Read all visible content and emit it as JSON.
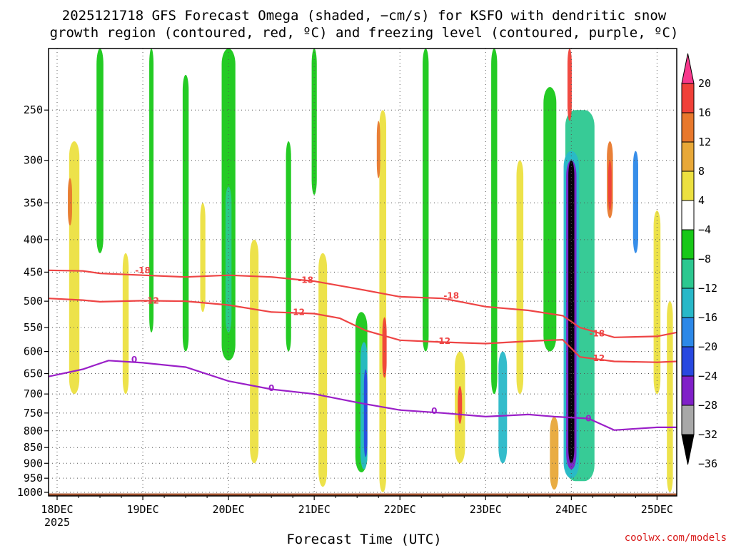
{
  "chart_data": {
    "type": "heatmap",
    "title_line1": "2025121718 GFS Forecast Omega (shaded, −cm/s) for KSFO with dendritic snow",
    "title_line2": "growth region (contoured, red, ºC) and freezing level (contoured, purple, ºC)",
    "xlabel": "Forecast Time (UTC)",
    "ylabel": "",
    "credit": "coolwx.com/models",
    "x_range_days": [
      17.9,
      25.23
    ],
    "y_range_hpa": [
      200,
      1013
    ],
    "y_ticks": [
      "250",
      "300",
      "350",
      "400",
      "450",
      "500",
      "550",
      "600",
      "650",
      "700",
      "750",
      "800",
      "850",
      "900",
      "950",
      "1000"
    ],
    "x_ticks": [
      {
        "label": "18DEC",
        "day": 18,
        "sublabel": "2025"
      },
      {
        "label": "19DEC",
        "day": 19
      },
      {
        "label": "20DEC",
        "day": 20
      },
      {
        "label": "21DEC",
        "day": 21
      },
      {
        "label": "22DEC",
        "day": 22
      },
      {
        "label": "23DEC",
        "day": 23
      },
      {
        "label": "24DEC",
        "day": 24
      },
      {
        "label": "25DEC",
        "day": 25
      }
    ],
    "colorbar": {
      "labels": [
        "20",
        "16",
        "12",
        "8",
        "4",
        "−4",
        "−8",
        "−12",
        "−16",
        "−20",
        "−24",
        "−28",
        "−32",
        "−36"
      ],
      "colors": [
        "#f7388c",
        "#f04038",
        "#e8782c",
        "#e8a838",
        "#ece040",
        "#ffffff",
        "#18c818",
        "#2cc890",
        "#28b8c8",
        "#2c88e8",
        "#2848e0",
        "#8020c8",
        "#a8a8a8",
        "#000000"
      ]
    },
    "series": [
      {
        "name": "-18",
        "color": "#ee4444",
        "points": [
          [
            17.9,
            447
          ],
          [
            18.3,
            448
          ],
          [
            18.5,
            452
          ],
          [
            19.0,
            455
          ],
          [
            19.5,
            458
          ],
          [
            20.0,
            455
          ],
          [
            20.5,
            458
          ],
          [
            21.0,
            465
          ],
          [
            21.5,
            478
          ],
          [
            22.0,
            492
          ],
          [
            22.5,
            495
          ],
          [
            23.0,
            510
          ],
          [
            23.5,
            517
          ],
          [
            23.9,
            527
          ],
          [
            24.1,
            550
          ],
          [
            24.5,
            570
          ],
          [
            25.0,
            568
          ],
          [
            25.23,
            560
          ]
        ]
      },
      {
        "name": "-12",
        "color": "#ee4444",
        "points": [
          [
            17.9,
            495
          ],
          [
            18.3,
            498
          ],
          [
            18.5,
            501
          ],
          [
            19.0,
            499
          ],
          [
            19.5,
            500
          ],
          [
            20.0,
            507
          ],
          [
            20.5,
            520
          ],
          [
            21.0,
            523
          ],
          [
            21.3,
            532
          ],
          [
            21.6,
            556
          ],
          [
            22.0,
            576
          ],
          [
            22.5,
            580
          ],
          [
            23.0,
            583
          ],
          [
            23.5,
            578
          ],
          [
            23.9,
            575
          ],
          [
            24.1,
            612
          ],
          [
            24.5,
            622
          ],
          [
            25.0,
            624
          ],
          [
            25.23,
            622
          ]
        ]
      },
      {
        "name": "0",
        "color": "#9a1fc8",
        "points": [
          [
            17.9,
            657
          ],
          [
            18.3,
            640
          ],
          [
            18.6,
            620
          ],
          [
            19.0,
            625
          ],
          [
            19.5,
            635
          ],
          [
            20.0,
            668
          ],
          [
            20.5,
            688
          ],
          [
            21.0,
            700
          ],
          [
            21.5,
            722
          ],
          [
            22.0,
            742
          ],
          [
            22.5,
            750
          ],
          [
            23.0,
            760
          ],
          [
            23.5,
            754
          ],
          [
            23.8,
            760
          ],
          [
            24.2,
            765
          ],
          [
            24.5,
            798
          ],
          [
            25.0,
            790
          ],
          [
            25.23,
            790
          ]
        ]
      }
    ],
    "contour_labels": [
      {
        "text": "-18",
        "day": 19.0,
        "hpa": 447
      },
      {
        "text": "-18",
        "day": 20.9,
        "hpa": 463
      },
      {
        "text": "-18",
        "day": 22.6,
        "hpa": 490
      },
      {
        "text": "-18",
        "day": 24.3,
        "hpa": 562
      },
      {
        "text": "-12",
        "day": 19.1,
        "hpa": 499
      },
      {
        "text": "-12",
        "day": 20.8,
        "hpa": 520
      },
      {
        "text": "-12",
        "day": 22.5,
        "hpa": 578
      },
      {
        "text": "-12",
        "day": 24.3,
        "hpa": 615
      },
      {
        "text": "0",
        "day": 18.9,
        "hpa": 618
      },
      {
        "text": "0",
        "day": 20.5,
        "hpa": 685
      },
      {
        "text": "0",
        "day": 22.4,
        "hpa": 745
      },
      {
        "text": "0",
        "day": 24.2,
        "hpa": 765
      }
    ],
    "omega_features": [
      {
        "day": 18.2,
        "top": 280,
        "bottom": 700,
        "w": 0.12,
        "color": "#ece040"
      },
      {
        "day": 18.15,
        "top": 320,
        "bottom": 380,
        "w": 0.05,
        "color": "#e8782c"
      },
      {
        "day": 18.5,
        "top": 200,
        "bottom": 420,
        "w": 0.08,
        "color": "#18c818"
      },
      {
        "day": 18.8,
        "top": 420,
        "bottom": 700,
        "w": 0.07,
        "color": "#ece040"
      },
      {
        "day": 19.1,
        "top": 200,
        "bottom": 560,
        "w": 0.05,
        "color": "#18c818"
      },
      {
        "day": 19.5,
        "top": 220,
        "bottom": 600,
        "w": 0.07,
        "color": "#18c818"
      },
      {
        "day": 19.7,
        "top": 350,
        "bottom": 520,
        "w": 0.06,
        "color": "#ece040"
      },
      {
        "day": 20.0,
        "top": 200,
        "bottom": 620,
        "w": 0.16,
        "color": "#18c818"
      },
      {
        "day": 20.0,
        "top": 330,
        "bottom": 560,
        "w": 0.07,
        "color": "#2cc890"
      },
      {
        "day": 20.3,
        "top": 400,
        "bottom": 900,
        "w": 0.1,
        "color": "#ece040"
      },
      {
        "day": 20.7,
        "top": 280,
        "bottom": 600,
        "w": 0.06,
        "color": "#18c818"
      },
      {
        "day": 21.1,
        "top": 420,
        "bottom": 980,
        "w": 0.1,
        "color": "#ece040"
      },
      {
        "day": 21.0,
        "top": 200,
        "bottom": 340,
        "w": 0.06,
        "color": "#18c818"
      },
      {
        "day": 21.55,
        "top": 520,
        "bottom": 930,
        "w": 0.14,
        "color": "#18c818"
      },
      {
        "day": 21.58,
        "top": 580,
        "bottom": 920,
        "w": 0.08,
        "color": "#28b8c8"
      },
      {
        "day": 21.6,
        "top": 640,
        "bottom": 880,
        "w": 0.04,
        "color": "#2848e0"
      },
      {
        "day": 21.8,
        "top": 250,
        "bottom": 1000,
        "w": 0.08,
        "color": "#ece040"
      },
      {
        "day": 21.82,
        "top": 530,
        "bottom": 660,
        "w": 0.05,
        "color": "#f04038"
      },
      {
        "day": 21.75,
        "top": 260,
        "bottom": 320,
        "w": 0.04,
        "color": "#e8782c"
      },
      {
        "day": 22.3,
        "top": 200,
        "bottom": 600,
        "w": 0.07,
        "color": "#18c818"
      },
      {
        "day": 22.7,
        "top": 600,
        "bottom": 900,
        "w": 0.12,
        "color": "#ece040"
      },
      {
        "day": 22.7,
        "top": 680,
        "bottom": 780,
        "w": 0.05,
        "color": "#f04038"
      },
      {
        "day": 23.1,
        "top": 200,
        "bottom": 700,
        "w": 0.07,
        "color": "#18c818"
      },
      {
        "day": 23.2,
        "top": 600,
        "bottom": 900,
        "w": 0.1,
        "color": "#28b8c8"
      },
      {
        "day": 23.4,
        "top": 300,
        "bottom": 700,
        "w": 0.08,
        "color": "#ece040"
      },
      {
        "day": 23.75,
        "top": 230,
        "bottom": 600,
        "w": 0.15,
        "color": "#18c818"
      },
      {
        "day": 23.8,
        "top": 760,
        "bottom": 990,
        "w": 0.1,
        "color": "#e8a838"
      },
      {
        "day": 24.1,
        "top": 250,
        "bottom": 960,
        "w": 0.34,
        "color": "#2cc890"
      },
      {
        "day": 24.0,
        "top": 290,
        "bottom": 950,
        "w": 0.18,
        "color": "#28b8c8"
      },
      {
        "day": 24.0,
        "top": 300,
        "bottom": 920,
        "w": 0.12,
        "color": "#8020c8"
      },
      {
        "day": 24.0,
        "top": 300,
        "bottom": 900,
        "w": 0.07,
        "color": "#000000"
      },
      {
        "day": 23.98,
        "top": 200,
        "bottom": 260,
        "w": 0.05,
        "color": "#f04038"
      },
      {
        "day": 24.45,
        "top": 280,
        "bottom": 370,
        "w": 0.07,
        "color": "#e8782c"
      },
      {
        "day": 24.45,
        "top": 300,
        "bottom": 360,
        "w": 0.04,
        "color": "#f04038"
      },
      {
        "day": 24.75,
        "top": 290,
        "bottom": 420,
        "w": 0.06,
        "color": "#2c88e8"
      },
      {
        "day": 25.0,
        "top": 360,
        "bottom": 700,
        "w": 0.08,
        "color": "#ece040"
      },
      {
        "day": 25.15,
        "top": 500,
        "bottom": 1000,
        "w": 0.07,
        "color": "#ece040"
      }
    ]
  }
}
